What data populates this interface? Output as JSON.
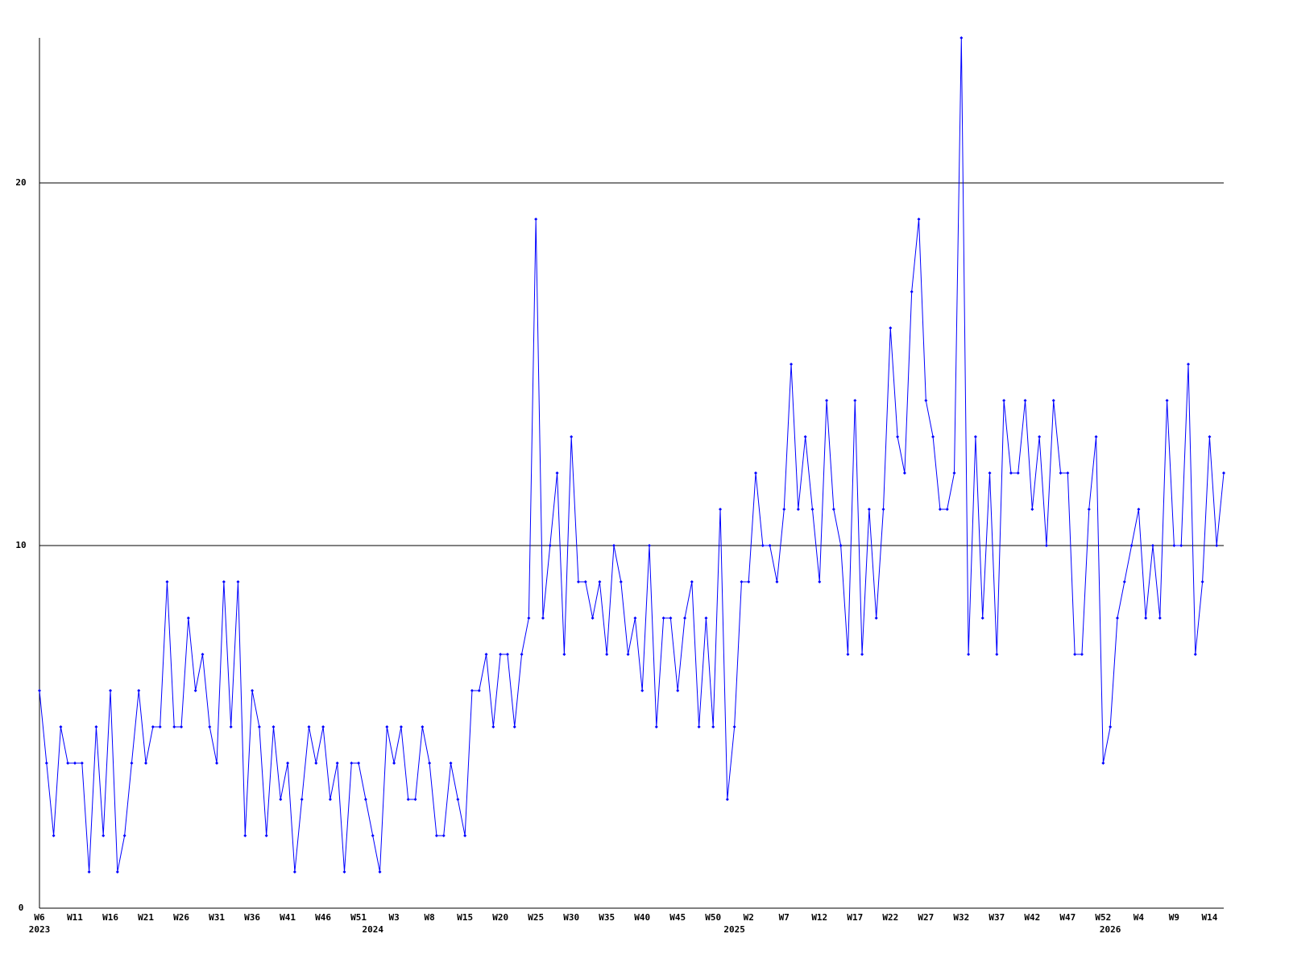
{
  "chart_data": {
    "type": "line",
    "categories": [
      "W6",
      null,
      null,
      null,
      null,
      "W11",
      null,
      null,
      null,
      null,
      "W16",
      null,
      null,
      null,
      null,
      "W21",
      null,
      null,
      null,
      null,
      "W26",
      null,
      null,
      null,
      null,
      "W31",
      null,
      null,
      null,
      null,
      "W36",
      null,
      null,
      null,
      null,
      "W41",
      null,
      null,
      null,
      null,
      "W46",
      null,
      null,
      null,
      null,
      "W51",
      null,
      null,
      null,
      null,
      "W3",
      null,
      null,
      null,
      null,
      "W8",
      null,
      null,
      null,
      null,
      "W15",
      null,
      null,
      null,
      null,
      "W20",
      null,
      null,
      null,
      null,
      "W25",
      null,
      null,
      null,
      null,
      "W30",
      null,
      null,
      null,
      null,
      "W35",
      null,
      null,
      null,
      null,
      "W40",
      null,
      null,
      null,
      null,
      "W45",
      null,
      null,
      null,
      null,
      "W50",
      null,
      null,
      null,
      null,
      "W2",
      null,
      null,
      null,
      null,
      "W7",
      null,
      null,
      null,
      null,
      "W12",
      null,
      null,
      null,
      null,
      "W17",
      null,
      null,
      null,
      null,
      "W22",
      null,
      null,
      null,
      null,
      "W27",
      null,
      null,
      null,
      null,
      "W32",
      null,
      null,
      null,
      null,
      "W37",
      null,
      null,
      null,
      null,
      "W42",
      null,
      null,
      null,
      null,
      "W47",
      null,
      null,
      null,
      null,
      "W52",
      null,
      null,
      null,
      null,
      "W4",
      null,
      null,
      null,
      null,
      "W9",
      null,
      null,
      null,
      null,
      "W14",
      null,
      null
    ],
    "years": [
      "2023",
      null,
      null,
      null,
      null,
      null,
      null,
      null,
      null,
      null,
      null,
      null,
      null,
      null,
      null,
      null,
      null,
      null,
      null,
      null,
      null,
      null,
      null,
      null,
      null,
      null,
      null,
      null,
      null,
      null,
      null,
      null,
      null,
      null,
      null,
      null,
      null,
      null,
      null,
      null,
      null,
      null,
      null,
      null,
      null,
      null,
      null,
      "2024",
      null,
      null,
      null,
      null,
      null,
      null,
      null,
      null,
      null,
      null,
      null,
      null,
      null,
      null,
      null,
      null,
      null,
      null,
      null,
      null,
      null,
      null,
      null,
      null,
      null,
      null,
      null,
      null,
      null,
      null,
      null,
      null,
      null,
      null,
      null,
      null,
      null,
      null,
      null,
      null,
      null,
      null,
      null,
      null,
      null,
      null,
      null,
      null,
      null,
      null,
      "2025",
      null,
      null,
      null,
      null,
      null,
      null,
      null,
      null,
      null,
      null,
      null,
      null,
      null,
      null,
      null,
      null,
      null,
      null,
      null,
      null,
      null,
      null,
      null,
      null,
      null,
      null,
      null,
      null,
      null,
      null,
      null,
      null,
      null,
      null,
      null,
      null,
      null,
      null,
      null,
      null,
      null,
      null,
      null,
      null,
      null,
      null,
      null,
      null,
      null,
      null,
      null,
      null,
      "2026",
      null,
      null,
      null,
      null,
      null,
      null,
      null,
      null,
      null,
      null,
      null,
      null,
      null,
      null,
      null,
      null
    ],
    "series": [
      {
        "color": "#0000ff",
        "values": [
          6,
          4,
          2,
          5,
          4,
          4,
          4,
          1,
          5,
          2,
          6,
          1,
          2,
          4,
          6,
          4,
          5,
          5,
          9,
          5,
          5,
          8,
          6,
          7,
          5,
          4,
          9,
          5,
          9,
          2,
          6,
          5,
          2,
          5,
          3,
          4,
          1,
          3,
          5,
          4,
          5,
          3,
          4,
          1,
          4,
          4,
          3,
          2,
          1,
          5,
          4,
          5,
          3,
          3,
          5,
          4,
          2,
          2,
          4,
          3,
          2,
          6,
          6,
          7,
          5,
          7,
          7,
          5,
          7,
          8,
          19,
          8,
          10,
          12,
          7,
          13,
          9,
          9,
          8,
          9,
          7,
          10,
          9,
          7,
          8,
          6,
          10,
          5,
          8,
          8,
          6,
          8,
          9,
          5,
          8,
          5,
          11,
          3,
          5,
          9,
          9,
          12,
          10,
          10,
          9,
          11,
          15,
          11,
          13,
          11,
          9,
          14,
          11,
          10,
          7,
          14,
          7,
          11,
          8,
          11,
          16,
          13,
          12,
          17,
          19,
          14,
          13,
          11,
          11,
          12,
          24,
          7,
          13,
          8,
          12,
          7,
          14,
          12,
          12,
          14,
          11,
          13,
          10,
          14,
          12,
          12,
          7,
          7,
          11,
          13,
          4,
          5,
          8,
          9,
          10,
          11,
          8,
          10,
          8,
          14,
          10,
          10,
          15,
          7,
          9,
          13,
          10,
          12
        ]
      }
    ],
    "ylim": [
      0,
      24
    ],
    "yticks": [
      0,
      10,
      20
    ],
    "grid": true
  }
}
